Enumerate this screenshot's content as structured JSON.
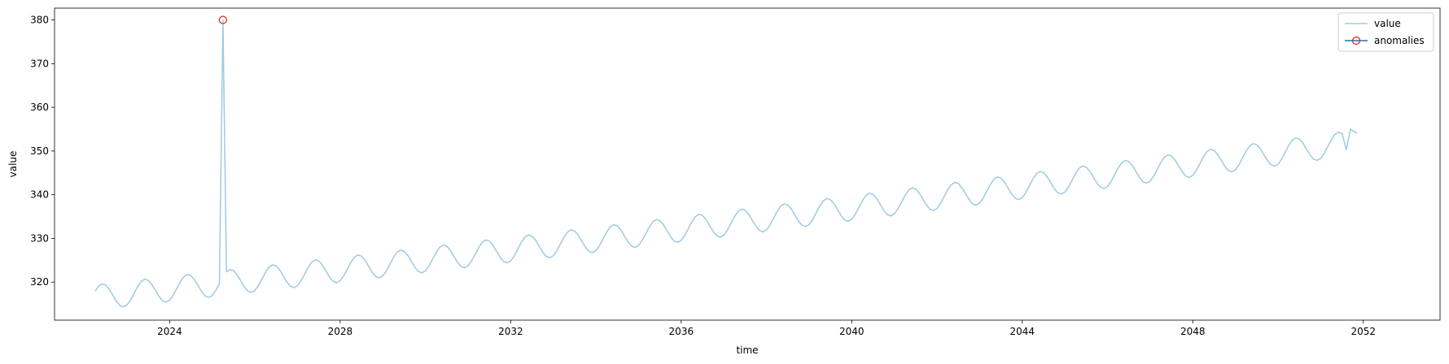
{
  "chart_data": {
    "type": "line",
    "title": "",
    "xlabel": "time",
    "ylabel": "value",
    "xlim": [
      2021.3,
      2053.8
    ],
    "ylim": [
      311.3,
      382.7
    ],
    "x_ticks": [
      2024,
      2028,
      2032,
      2036,
      2040,
      2044,
      2048,
      2052
    ],
    "y_ticks": [
      320,
      330,
      340,
      350,
      360,
      370,
      380
    ],
    "grid": false,
    "legend_position": "top-right",
    "colors": {
      "value": "#9ecae1",
      "anomalies": "#e0211b",
      "anomaly_legend_line": "#1f77b4"
    },
    "series": [
      {
        "name": "value",
        "style": "line",
        "model": {
          "start": 2022.25,
          "end": 2051.85,
          "step": 0.0833333,
          "base": 316.5,
          "trend_per_year": 1.08,
          "trend_curvature": 0.004,
          "seasonal_amplitude": 2.9,
          "seasonal_peak_fraction": 0.42
        },
        "spike": {
          "x": 2025.25,
          "y": 380
        },
        "end_points": [
          [
            2051.6,
            350.3
          ],
          [
            2051.7,
            355.0
          ],
          [
            2051.85,
            354.1
          ]
        ]
      },
      {
        "name": "anomalies",
        "style": "marker",
        "points": [
          {
            "x": 2025.25,
            "y": 380
          }
        ]
      }
    ]
  }
}
